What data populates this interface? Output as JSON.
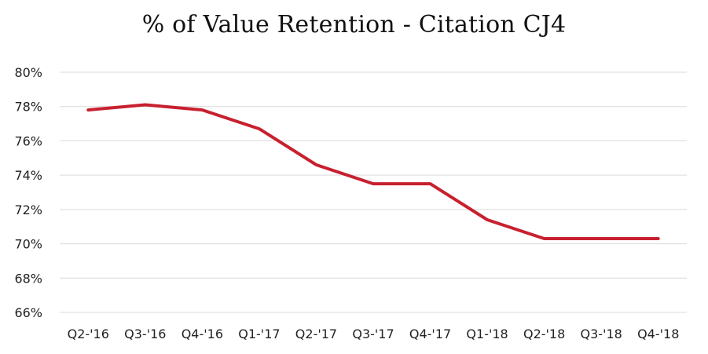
{
  "chart_data": {
    "type": "line",
    "title": "% of Value Retention - Citation CJ4",
    "xlabel": "",
    "ylabel": "",
    "categories": [
      "Q2-'16",
      "Q3-'16",
      "Q4-'16",
      "Q1-'17",
      "Q2-'17",
      "Q3-'17",
      "Q4-'17",
      "Q1-'18",
      "Q2-'18",
      "Q3-'18",
      "Q4-'18"
    ],
    "series": [
      {
        "values": [
          77.8,
          78.1,
          77.8,
          76.7,
          74.6,
          73.5,
          73.5,
          71.4,
          70.3,
          70.3,
          70.3
        ]
      }
    ],
    "ylim": [
      66,
      80
    ],
    "yticks": [
      66,
      68,
      70,
      72,
      74,
      76,
      78,
      80
    ],
    "ytick_labels": [
      "66%",
      "68%",
      "70%",
      "72%",
      "74%",
      "76%",
      "78%",
      "80%"
    ],
    "grid": true,
    "legend": "none",
    "colors": {
      "series": "#c8202f",
      "grid": "#d9d9d9"
    }
  }
}
